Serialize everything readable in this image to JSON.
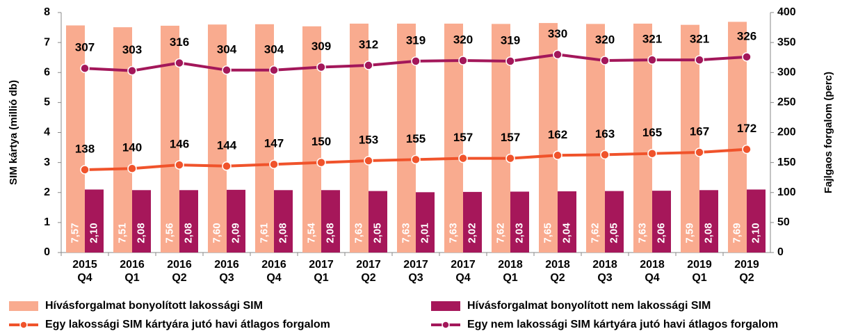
{
  "chart_data": {
    "type": "bar",
    "categories": [
      [
        "2015",
        "Q4"
      ],
      [
        "2016",
        "Q1"
      ],
      [
        "2016",
        "Q2"
      ],
      [
        "2016",
        "Q3"
      ],
      [
        "2016",
        "Q4"
      ],
      [
        "2017",
        "Q1"
      ],
      [
        "2017",
        "Q2"
      ],
      [
        "2017",
        "Q3"
      ],
      [
        "2017",
        "Q4"
      ],
      [
        "2018",
        "Q1"
      ],
      [
        "2018",
        "Q2"
      ],
      [
        "2018",
        "Q3"
      ],
      [
        "2018",
        "Q4"
      ],
      [
        "2019",
        "Q1"
      ],
      [
        "2019",
        "Q2"
      ]
    ],
    "ylabel": "SIM kártya (millió db)",
    "y2label": "Fajlgaos forgalom (perc)",
    "ylim": [
      0,
      8
    ],
    "yticks": [
      0,
      1,
      2,
      3,
      4,
      5,
      6,
      7,
      8
    ],
    "y2lim": [
      0,
      400
    ],
    "y2ticks": [
      0,
      50,
      100,
      150,
      200,
      250,
      300,
      350,
      400
    ],
    "grid": false,
    "series": [
      {
        "name": "Hívásforgalmat bonyolított lakossági SIM",
        "type": "bar",
        "color": "#f9ab8f",
        "values": [
          7.57,
          7.51,
          7.56,
          7.6,
          7.61,
          7.54,
          7.63,
          7.63,
          7.63,
          7.62,
          7.65,
          7.62,
          7.63,
          7.59,
          7.69
        ],
        "value_labels": [
          "7,57",
          "7,51",
          "7,56",
          "7,60",
          "7,61",
          "7,54",
          "7,63",
          "7,63",
          "7,63",
          "7,62",
          "7,65",
          "7,62",
          "7,63",
          "7,59",
          "7,69"
        ]
      },
      {
        "name": "Hívásforgalmat bonyolított nem lakossági SIM",
        "type": "bar",
        "color": "#a6175a",
        "values": [
          2.1,
          2.08,
          2.08,
          2.09,
          2.08,
          2.08,
          2.05,
          2.01,
          2.02,
          2.03,
          2.04,
          2.05,
          2.06,
          2.08,
          2.1
        ],
        "value_labels": [
          "2,10",
          "2,08",
          "2,08",
          "2,09",
          "2,08",
          "2,08",
          "2,05",
          "2,01",
          "2,02",
          "2,03",
          "2,04",
          "2,05",
          "2,06",
          "2,08",
          "2,10"
        ]
      },
      {
        "name": "Egy lakossági SIM kártyára jutó havi átlagos forgalom",
        "type": "line",
        "axis": "y2",
        "color": "#f0532b",
        "values": [
          138,
          140,
          146,
          144,
          147,
          150,
          153,
          155,
          157,
          157,
          162,
          163,
          165,
          167,
          172
        ]
      },
      {
        "name": "Egy nem lakossági SIM kártyára jutó havi átlagos forgalom",
        "type": "line",
        "axis": "y2",
        "color": "#a3175a",
        "values": [
          307,
          303,
          316,
          304,
          304,
          309,
          312,
          319,
          320,
          319,
          330,
          320,
          321,
          321,
          326
        ]
      }
    ]
  }
}
